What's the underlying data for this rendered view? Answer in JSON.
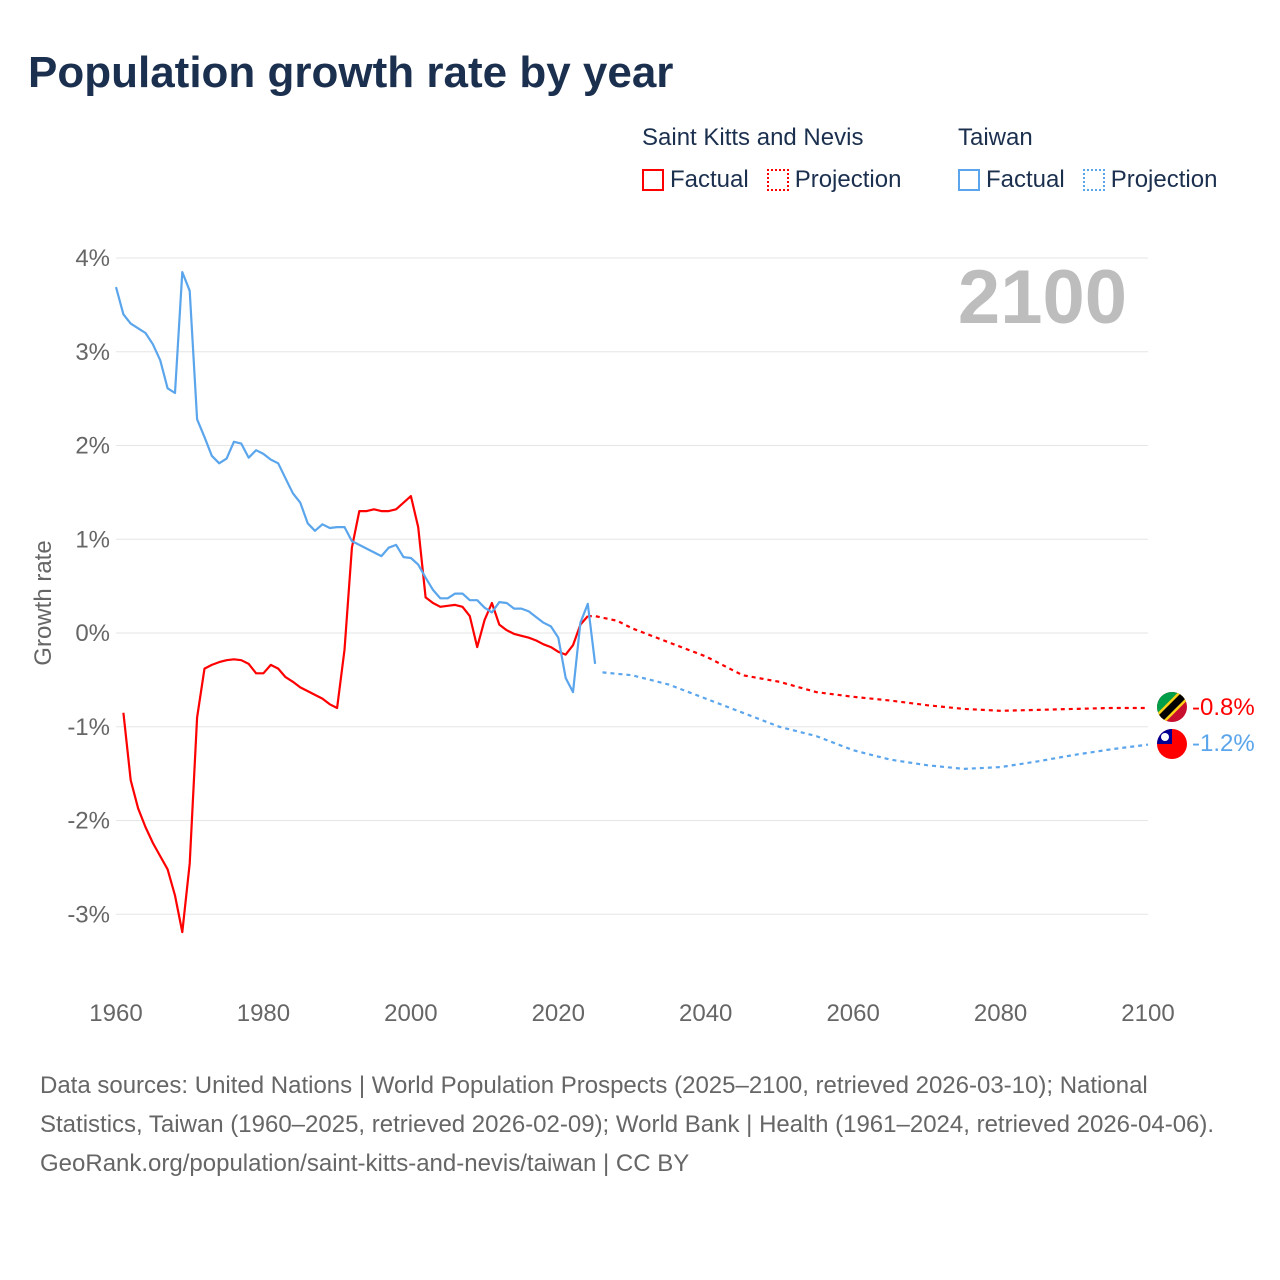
{
  "title": "Population growth rate by year",
  "legend": [
    {
      "country": "Saint Kitts and Nevis",
      "factual": "Factual",
      "projection": "Projection",
      "color": "#ff0000"
    },
    {
      "country": "Taiwan",
      "factual": "Factual",
      "projection": "Projection",
      "color": "#5aa5ec"
    }
  ],
  "year_watermark": "2100",
  "end_labels": {
    "skn": "-0.8%",
    "taiwan": "-1.2%"
  },
  "flag_icons": {
    "skn": "saint-kitts-and-nevis-flag-icon",
    "taiwan": "taiwan-flag-icon"
  },
  "footer": {
    "sources": "Data sources: United Nations | World Population Prospects (2025–2100, retrieved 2026-03-10); National Statistics, Taiwan (1960–2025, retrieved 2026-02-09); World Bank | Health (1961–2024, retrieved 2026-04-06).",
    "credit": "GeoRank.org/population/saint-kitts-and-nevis/taiwan | CC BY"
  },
  "chart_data": {
    "type": "line",
    "title": "Population growth rate by year",
    "xlabel": "",
    "ylabel": "Growth rate",
    "xlim": [
      1960,
      2100
    ],
    "ylim": [
      -3.5,
      4
    ],
    "x_ticks": [
      1960,
      1980,
      2000,
      2020,
      2040,
      2060,
      2080,
      2100
    ],
    "x_tick_labels": [
      "1960",
      "1980",
      "2000",
      "2020",
      "2040",
      "2060",
      "2080",
      "2100"
    ],
    "y_ticks": [
      4,
      3,
      2,
      1,
      0,
      -1,
      -2,
      -3
    ],
    "y_tick_labels": [
      "4%",
      "3%",
      "2%",
      "1%",
      "0%",
      "-1%",
      "-2%",
      "-3%"
    ],
    "grid": true,
    "legend_position": "top-right",
    "series": [
      {
        "name": "Saint Kitts and Nevis - Factual",
        "color": "#ff0000",
        "style": "solid",
        "x": [
          1961,
          1962,
          1963,
          1964,
          1965,
          1966,
          1967,
          1968,
          1969,
          1970,
          1971,
          1972,
          1973,
          1974,
          1975,
          1976,
          1977,
          1978,
          1979,
          1980,
          1981,
          1982,
          1983,
          1984,
          1985,
          1986,
          1987,
          1988,
          1989,
          1990,
          1991,
          1992,
          1993,
          1994,
          1995,
          1996,
          1997,
          1998,
          1999,
          2000,
          2001,
          2002,
          2003,
          2004,
          2005,
          2006,
          2007,
          2008,
          2009,
          2010,
          2011,
          2012,
          2013,
          2014,
          2015,
          2016,
          2017,
          2018,
          2019,
          2020,
          2021,
          2022,
          2023,
          2024
        ],
        "y": [
          -0.85,
          -1.57,
          -1.87,
          -2.07,
          -2.24,
          -2.38,
          -2.52,
          -2.8,
          -3.19,
          -2.46,
          -0.9,
          -0.38,
          -0.34,
          -0.31,
          -0.29,
          -0.28,
          -0.29,
          -0.33,
          -0.43,
          -0.43,
          -0.34,
          -0.38,
          -0.47,
          -0.52,
          -0.58,
          -0.62,
          -0.66,
          -0.7,
          -0.76,
          -0.8,
          -0.18,
          0.91,
          1.3,
          1.3,
          1.32,
          1.3,
          1.3,
          1.32,
          1.39,
          1.46,
          1.13,
          0.38,
          0.32,
          0.28,
          0.29,
          0.3,
          0.28,
          0.18,
          -0.15,
          0.14,
          0.32,
          0.09,
          0.03,
          -0.01,
          -0.03,
          -0.05,
          -0.08,
          -0.12,
          -0.15,
          -0.2,
          -0.23,
          -0.13,
          0.09,
          0.18
        ]
      },
      {
        "name": "Saint Kitts and Nevis - Projection",
        "color": "#ff0000",
        "style": "dashed",
        "x": [
          2024,
          2025,
          2028,
          2030,
          2035,
          2040,
          2045,
          2050,
          2055,
          2060,
          2065,
          2070,
          2075,
          2080,
          2085,
          2090,
          2095,
          2100
        ],
        "y": [
          0.18,
          0.18,
          0.13,
          0.05,
          -0.1,
          -0.25,
          -0.45,
          -0.52,
          -0.63,
          -0.68,
          -0.72,
          -0.77,
          -0.81,
          -0.83,
          -0.82,
          -0.81,
          -0.8,
          -0.8
        ]
      },
      {
        "name": "Taiwan - Factual",
        "color": "#5aa5ec",
        "style": "solid",
        "x": [
          1960,
          1961,
          1962,
          1963,
          1964,
          1965,
          1966,
          1967,
          1968,
          1969,
          1970,
          1971,
          1972,
          1973,
          1974,
          1975,
          1976,
          1977,
          1978,
          1979,
          1980,
          1981,
          1982,
          1983,
          1984,
          1985,
          1986,
          1987,
          1988,
          1989,
          1990,
          1991,
          1992,
          1993,
          1994,
          1995,
          1996,
          1997,
          1998,
          1999,
          2000,
          2001,
          2002,
          2003,
          2004,
          2005,
          2006,
          2007,
          2008,
          2009,
          2010,
          2011,
          2012,
          2013,
          2014,
          2015,
          2016,
          2017,
          2018,
          2019,
          2020,
          2021,
          2022,
          2023,
          2024,
          2025
        ],
        "y": [
          3.69,
          3.4,
          3.3,
          3.25,
          3.2,
          3.08,
          2.91,
          2.61,
          2.56,
          3.85,
          3.65,
          2.28,
          2.09,
          1.89,
          1.81,
          1.86,
          2.04,
          2.02,
          1.87,
          1.95,
          1.91,
          1.85,
          1.81,
          1.65,
          1.49,
          1.39,
          1.17,
          1.09,
          1.16,
          1.12,
          1.13,
          1.13,
          0.98,
          0.94,
          0.9,
          0.86,
          0.82,
          0.91,
          0.94,
          0.81,
          0.8,
          0.73,
          0.59,
          0.46,
          0.37,
          0.37,
          0.42,
          0.42,
          0.35,
          0.35,
          0.27,
          0.22,
          0.33,
          0.32,
          0.26,
          0.26,
          0.23,
          0.17,
          0.11,
          0.07,
          -0.05,
          -0.48,
          -0.63,
          0.11,
          0.31,
          -0.33
        ]
      },
      {
        "name": "Taiwan - Projection",
        "color": "#5aa5ec",
        "style": "dashed",
        "x": [
          2026,
          2030,
          2035,
          2040,
          2045,
          2050,
          2055,
          2060,
          2065,
          2070,
          2075,
          2080,
          2085,
          2090,
          2095,
          2100
        ],
        "y": [
          -0.42,
          -0.45,
          -0.55,
          -0.7,
          -0.85,
          -1.0,
          -1.1,
          -1.25,
          -1.35,
          -1.41,
          -1.45,
          -1.43,
          -1.37,
          -1.3,
          -1.24,
          -1.19
        ]
      }
    ]
  }
}
